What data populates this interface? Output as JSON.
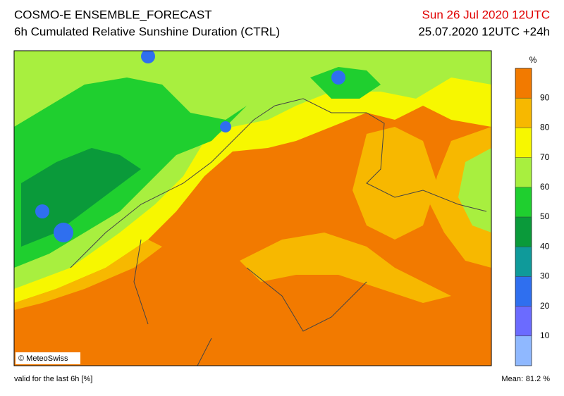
{
  "header": {
    "title": "COSMO-E ENSEMBLE_FORECAST",
    "subtitle": "6h Cumulated Relative Sunshine Duration (CTRL)",
    "valid_date": "Sun 26 Jul 2020 12UTC",
    "run": "25.07.2020 12UTC +24h"
  },
  "map": {
    "credit": "© MeteoSwiss"
  },
  "legend": {
    "unit": "%",
    "lim": [
      0,
      100
    ],
    "ticks": [
      10,
      20,
      30,
      40,
      50,
      60,
      70,
      80,
      90
    ],
    "colors": [
      "#8fb8ff",
      "#6b6bff",
      "#2f6fef",
      "#0f9a9a",
      "#0a9a3a",
      "#1fcf2f",
      "#a8ef3f",
      "#f7f700",
      "#f7b800",
      "#f27a00"
    ]
  },
  "footer": {
    "note": "valid for the last 6h [%]",
    "mean_label": "Mean:",
    "mean_value": "81.2 %"
  }
}
